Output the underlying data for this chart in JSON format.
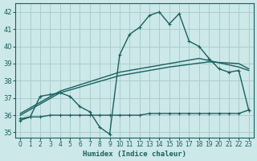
{
  "xlabel": "Humidex (Indice chaleur)",
  "xlim": [
    -0.5,
    23.5
  ],
  "ylim": [
    34.7,
    42.5
  ],
  "yticks": [
    35,
    36,
    37,
    38,
    39,
    40,
    41,
    42
  ],
  "xticks": [
    0,
    1,
    2,
    3,
    4,
    5,
    6,
    7,
    8,
    9,
    10,
    11,
    12,
    13,
    14,
    15,
    16,
    17,
    18,
    19,
    20,
    21,
    22,
    23
  ],
  "bg_color": "#cce8e8",
  "grid_color": "#aacece",
  "line_color": "#1a6060",
  "line_spike_x": [
    0,
    1,
    2,
    3,
    4,
    5,
    6,
    7,
    8,
    9,
    10,
    11,
    12,
    13,
    14,
    15,
    16,
    17,
    18,
    19,
    20,
    21,
    22,
    23
  ],
  "line_spike_y": [
    35.7,
    35.9,
    37.1,
    37.2,
    37.3,
    37.1,
    36.5,
    36.2,
    35.3,
    34.9,
    39.5,
    40.7,
    41.1,
    41.8,
    42.0,
    41.3,
    41.9,
    40.3,
    40.0,
    39.3,
    38.7,
    38.5,
    38.6,
    36.3
  ],
  "line_flat_x": [
    0,
    1,
    2,
    3,
    4,
    5,
    6,
    7,
    8,
    9,
    10,
    11,
    12,
    13,
    14,
    15,
    16,
    17,
    18,
    19,
    20,
    21,
    22,
    23
  ],
  "line_flat_y": [
    35.8,
    35.9,
    35.9,
    36.0,
    36.0,
    36.0,
    36.0,
    36.0,
    36.0,
    36.0,
    36.0,
    36.0,
    36.0,
    36.1,
    36.1,
    36.1,
    36.1,
    36.1,
    36.1,
    36.1,
    36.1,
    36.1,
    36.1,
    36.3
  ],
  "line_rise1_x": [
    0,
    4,
    10,
    15,
    19,
    22,
    23
  ],
  "line_rise1_y": [
    36.0,
    37.3,
    38.3,
    38.8,
    39.1,
    39.0,
    38.7
  ],
  "line_rise2_x": [
    0,
    4,
    10,
    15,
    18,
    22,
    23
  ],
  "line_rise2_y": [
    36.1,
    37.4,
    38.5,
    39.0,
    39.3,
    38.8,
    38.6
  ]
}
